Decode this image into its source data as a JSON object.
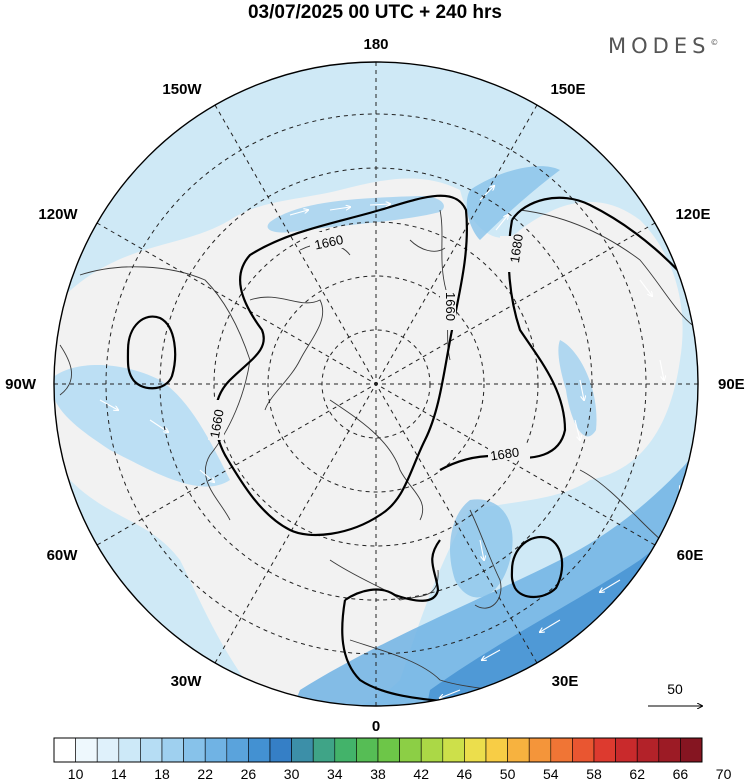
{
  "title": "03/07/2025  00 UTC  + 240 hrs",
  "brand": "MODES",
  "brand_mark": "©",
  "longitude_labels": {
    "top": "180",
    "bottom": "0",
    "left": "90W",
    "right": "90E",
    "upper_left_1": "150W",
    "upper_left_2": "120W",
    "lower_left_1": "60W",
    "lower_left_2": "30W",
    "upper_right_1": "150E",
    "upper_right_2": "120E",
    "lower_right_1": "60E",
    "lower_right_2": "30E"
  },
  "contour_labels": [
    "1660",
    "1680",
    "1660",
    "1660",
    "1680"
  ],
  "reference_vector": {
    "value": "50"
  },
  "colorbar": {
    "ticks": [
      "10",
      "14",
      "18",
      "22",
      "26",
      "30",
      "34",
      "38",
      "42",
      "46",
      "50",
      "54",
      "58",
      "62",
      "66",
      "70"
    ],
    "colors": [
      "#ffffff",
      "#eef8fd",
      "#dff1fb",
      "#cde9f8",
      "#b6ddf4",
      "#9fd0ef",
      "#87c2ea",
      "#70b3e4",
      "#5aa3dc",
      "#4391d2",
      "#357fc6",
      "#3c8fa8",
      "#3fa487",
      "#43b36a",
      "#56bd55",
      "#6dc648",
      "#8ccf45",
      "#abd846",
      "#cde04a",
      "#ecde4c",
      "#f8cd45",
      "#f7b23f",
      "#f4953a",
      "#f07535",
      "#e95631",
      "#dd3a2f",
      "#c92a2c",
      "#b32229",
      "#9c1b25",
      "#851521"
    ]
  }
}
